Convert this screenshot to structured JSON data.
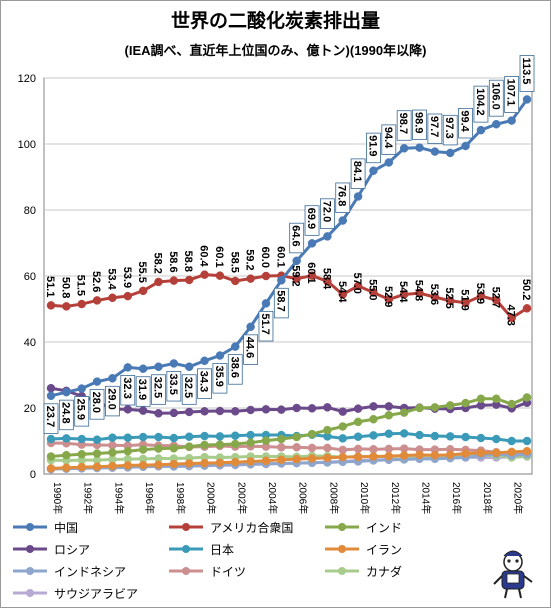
{
  "chart_data": {
    "type": "line",
    "title": "世界の二酸化炭素排出量",
    "subtitle": "(IEA調べ、直近年上位国のみ、億トン)(1990年以降)",
    "xlabel": "",
    "ylabel": "",
    "ylim": [
      0,
      120
    ],
    "yticks": [
      "0",
      "20",
      "40",
      "60",
      "80",
      "100",
      "120"
    ],
    "x": [
      1990,
      1991,
      1992,
      1993,
      1994,
      1995,
      1996,
      1997,
      1998,
      1999,
      2000,
      2001,
      2002,
      2003,
      2004,
      2005,
      2006,
      2007,
      2008,
      2009,
      2010,
      2011,
      2012,
      2013,
      2014,
      2015,
      2016,
      2017,
      2018,
      2019,
      2020,
      2021
    ],
    "xtick_labels": [
      "1990年",
      "1992年",
      "1994年",
      "1996年",
      "1998年",
      "2000年",
      "2002年",
      "2004年",
      "2006年",
      "2008年",
      "2010年",
      "2012年",
      "2014年",
      "2016年",
      "2018年",
      "2020年"
    ],
    "grid": true,
    "legend_position": "bottom",
    "series": [
      {
        "name": "中国",
        "color": "#4a7ab5",
        "values": [
          23.7,
          24.8,
          25.9,
          28.0,
          29.0,
          32.3,
          31.9,
          32.5,
          33.5,
          32.5,
          34.3,
          35.9,
          38.6,
          44.6,
          51.7,
          58.7,
          64.6,
          69.9,
          72.0,
          76.8,
          84.1,
          91.9,
          94.4,
          98.7,
          98.9,
          97.7,
          97.3,
          99.4,
          104.2,
          106.0,
          107.1,
          113.5
        ]
      },
      {
        "name": "アメリカ合衆国",
        "color": "#b5403a",
        "values": [
          51.1,
          50.8,
          51.5,
          52.6,
          53.4,
          53.9,
          55.5,
          58.2,
          58.6,
          58.8,
          60.4,
          60.1,
          58.5,
          59.2,
          60.0,
          60.1,
          59.2,
          60.1,
          58.4,
          54.4,
          57.0,
          55.0,
          52.9,
          54.4,
          54.8,
          53.6,
          52.5,
          51.9,
          53.9,
          52.7,
          47.3,
          50.2
        ]
      },
      {
        "name": "インド",
        "color": "#86a84a",
        "values": [
          5.3,
          5.7,
          6.0,
          6.2,
          6.5,
          6.9,
          7.4,
          7.7,
          7.8,
          8.3,
          8.8,
          8.9,
          9.1,
          9.5,
          10.1,
          10.6,
          11.2,
          12.1,
          13.3,
          14.4,
          15.8,
          16.6,
          17.8,
          18.6,
          20.0,
          20.2,
          20.8,
          21.5,
          22.8,
          22.8,
          21.2,
          23.2
        ]
      },
      {
        "name": "ロシア",
        "color": "#6a4a8a",
        "values": [
          26.0,
          25.2,
          23.6,
          22.0,
          19.7,
          19.6,
          19.2,
          18.4,
          18.5,
          18.8,
          19.0,
          19.1,
          19.0,
          19.4,
          19.6,
          19.5,
          20.0,
          19.9,
          20.2,
          18.9,
          19.8,
          20.5,
          20.5,
          20.0,
          20.1,
          19.8,
          19.7,
          20.0,
          20.8,
          21.0,
          19.9,
          21.6
        ]
      },
      {
        "name": "日本",
        "color": "#3a9ab8",
        "values": [
          10.6,
          10.8,
          10.6,
          10.4,
          11.0,
          11.0,
          11.2,
          11.2,
          10.9,
          11.3,
          11.5,
          11.4,
          11.6,
          11.8,
          11.8,
          11.8,
          11.5,
          11.9,
          11.4,
          10.8,
          11.3,
          11.7,
          12.2,
          12.3,
          11.8,
          11.5,
          11.4,
          11.2,
          10.9,
          10.6,
          10.0,
          10.0
        ]
      },
      {
        "name": "イラン",
        "color": "#e08a3a",
        "values": [
          1.7,
          1.9,
          2.1,
          2.2,
          2.4,
          2.6,
          2.7,
          2.8,
          3.0,
          3.2,
          3.3,
          3.4,
          3.6,
          3.8,
          4.0,
          4.3,
          4.5,
          4.7,
          4.9,
          5.1,
          5.2,
          5.3,
          5.4,
          5.6,
          5.8,
          5.7,
          5.8,
          6.2,
          6.4,
          6.4,
          6.7,
          6.9
        ]
      },
      {
        "name": "インドネシア",
        "color": "#8ea6cc",
        "values": [
          1.5,
          1.6,
          1.7,
          1.8,
          1.9,
          2.0,
          2.2,
          2.4,
          2.3,
          2.4,
          2.6,
          2.8,
          2.9,
          3.0,
          3.1,
          3.2,
          3.3,
          3.4,
          3.5,
          3.7,
          3.8,
          4.1,
          4.3,
          4.4,
          4.6,
          4.6,
          4.8,
          5.0,
          5.6,
          6.0,
          5.6,
          6.0
        ]
      },
      {
        "name": "ドイツ",
        "color": "#cc8e8e",
        "values": [
          9.4,
          9.3,
          8.9,
          8.8,
          8.7,
          8.6,
          8.9,
          8.6,
          8.6,
          8.2,
          8.3,
          8.5,
          8.3,
          8.4,
          8.3,
          8.1,
          8.1,
          7.9,
          7.9,
          7.3,
          7.6,
          7.5,
          7.6,
          7.7,
          7.4,
          7.4,
          7.5,
          7.3,
          7.1,
          6.6,
          5.9,
          6.3
        ]
      },
      {
        "name": "カナダ",
        "color": "#a8cc8c",
        "values": [
          4.2,
          4.1,
          4.2,
          4.2,
          4.4,
          4.5,
          4.6,
          4.7,
          4.7,
          4.8,
          5.1,
          5.0,
          5.1,
          5.3,
          5.3,
          5.3,
          5.2,
          5.5,
          5.4,
          5.1,
          5.3,
          5.3,
          5.3,
          5.4,
          5.5,
          5.5,
          5.4,
          5.5,
          5.6,
          5.6,
          5.0,
          5.4
        ]
      },
      {
        "name": "サウジアラビア",
        "color": "#b8a8d4",
        "values": [
          1.5,
          1.8,
          1.9,
          2.0,
          2.1,
          2.1,
          2.2,
          2.3,
          2.3,
          2.4,
          2.5,
          2.6,
          2.7,
          2.9,
          3.0,
          3.2,
          3.3,
          3.4,
          3.6,
          3.8,
          4.1,
          4.2,
          4.4,
          4.5,
          4.8,
          5.0,
          5.1,
          5.1,
          5.0,
          5.0,
          5.2,
          5.3
        ]
      }
    ],
    "data_labels": {
      "中国": [
        "23.7",
        "24.8",
        "25.9",
        "28.0",
        "29.0",
        "32.3",
        "31.9",
        "32.5",
        "33.5",
        "32.5",
        "34.3",
        "35.9",
        "38.6",
        "44.6",
        "51.7",
        "58.7",
        "64.6",
        "69.9",
        "72.0",
        "76.8",
        "84.1",
        "91.9",
        "94.4",
        "98.7",
        "98.9",
        "97.7",
        "97.3",
        "99.4",
        "104.2",
        "106.0",
        "107.1",
        "113.5"
      ],
      "アメリカ合衆国": [
        "51.1",
        "50.8",
        "51.5",
        "52.6",
        "53.4",
        "53.9",
        "55.5",
        "58.2",
        "58.6",
        "58.8",
        "60.4",
        "60.1",
        "58.5",
        "59.2",
        "60.0",
        "60.1",
        "59.2",
        "60.1",
        "58.4",
        "54.4",
        "57.0",
        "55.0",
        "52.9",
        "54.4",
        "54.8",
        "53.6",
        "52.5",
        "51.9",
        "53.9",
        "52.7",
        "47.3",
        "50.2"
      ]
    }
  }
}
